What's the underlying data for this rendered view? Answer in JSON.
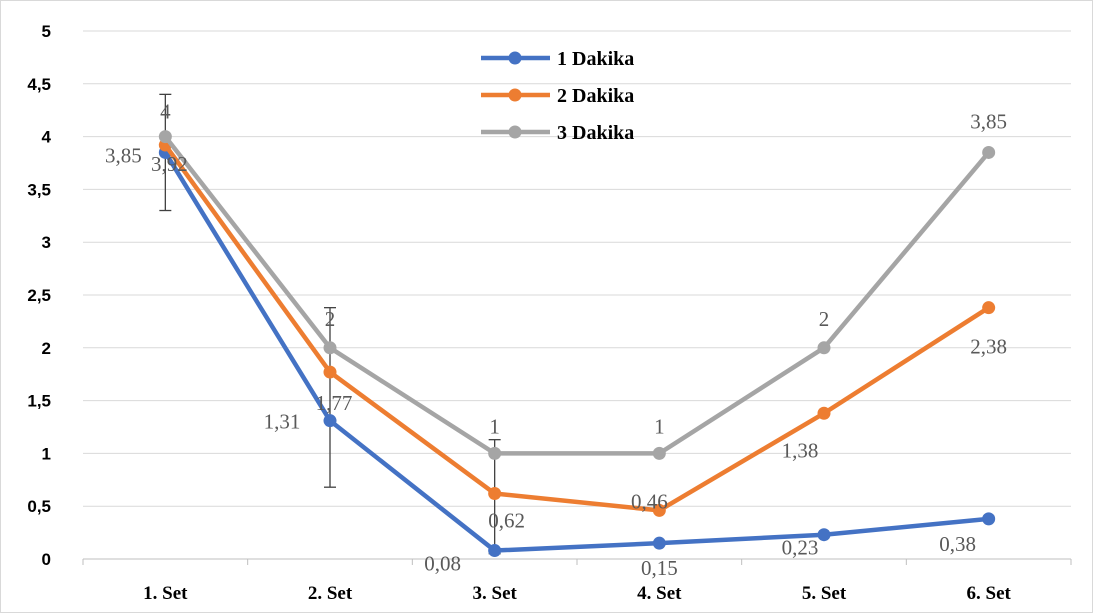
{
  "chart_data": {
    "type": "line",
    "categories": [
      "1. Set",
      "2. Set",
      "3. Set",
      "4. Set",
      "5. Set",
      "6. Set"
    ],
    "ylim": [
      0,
      5
    ],
    "yticks": [
      "0",
      "0,5",
      "1",
      "1,5",
      "2",
      "2,5",
      "3",
      "3,5",
      "4",
      "4,5",
      "5"
    ],
    "grid": true,
    "legend_position": "top-center",
    "series": [
      {
        "name": "1 Dakika",
        "color": "#4472C4",
        "values": [
          3.85,
          1.31,
          0.08,
          0.15,
          0.23,
          0.38
        ],
        "labels": [
          "3,85",
          "1,31",
          "0,08",
          "0,15",
          "0,23",
          "0,38"
        ]
      },
      {
        "name": "2 Dakika",
        "color": "#ED7D31",
        "values": [
          3.92,
          1.77,
          0.62,
          0.46,
          1.38,
          2.38
        ],
        "labels": [
          "3,92",
          "1,77",
          "0,62",
          "0,46",
          "1,38",
          "2,38"
        ]
      },
      {
        "name": "3 Dakika",
        "color": "#A5A5A5",
        "values": [
          4,
          2,
          1,
          1,
          2,
          3.85
        ],
        "labels": [
          "4",
          "2",
          "1",
          "1",
          "2",
          "3,85"
        ]
      }
    ],
    "error_bars": [
      {
        "category": "1. Set",
        "low": 3.3,
        "high": 4.4
      },
      {
        "category": "2. Set",
        "low": 0.68,
        "high": 2.38
      },
      {
        "category": "3. Set",
        "low": 0.05,
        "high": 1.13
      }
    ]
  }
}
